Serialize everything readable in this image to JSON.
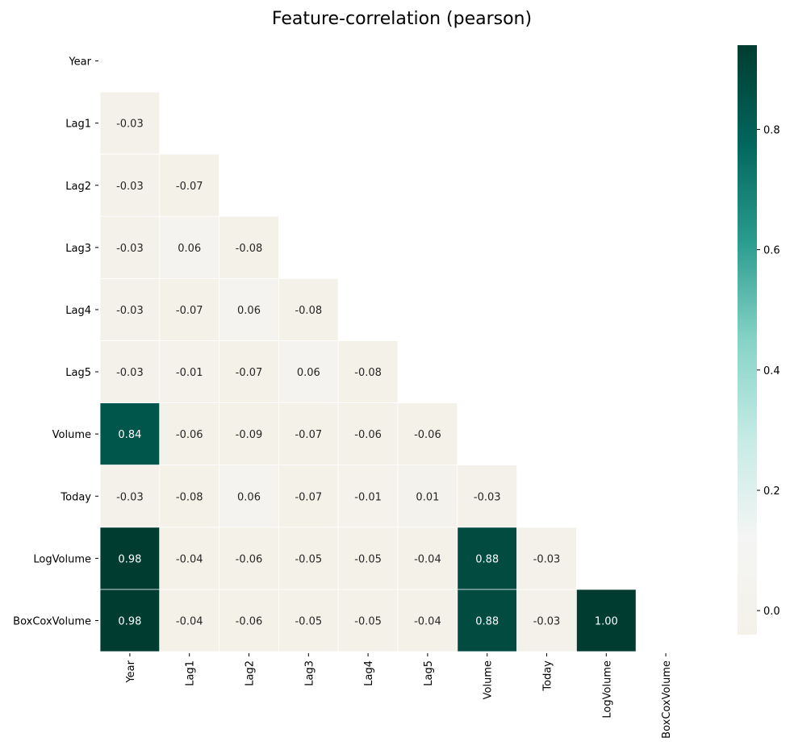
{
  "chart_data": {
    "type": "heatmap",
    "title": "Feature-correlation (pearson)",
    "xlabel": "",
    "ylabel": "",
    "labels": [
      "Year",
      "Lag1",
      "Lag2",
      "Lag3",
      "Lag4",
      "Lag5",
      "Volume",
      "Today",
      "LogVolume",
      "BoxCoxVolume"
    ],
    "mask": "upper-triangle-including-diagonal",
    "value_format": "0.00",
    "matrix": [
      [
        null,
        null,
        null,
        null,
        null,
        null,
        null,
        null,
        null,
        null
      ],
      [
        -0.03,
        null,
        null,
        null,
        null,
        null,
        null,
        null,
        null,
        null
      ],
      [
        -0.03,
        -0.07,
        null,
        null,
        null,
        null,
        null,
        null,
        null,
        null
      ],
      [
        -0.03,
        0.06,
        -0.08,
        null,
        null,
        null,
        null,
        null,
        null,
        null
      ],
      [
        -0.03,
        -0.07,
        0.06,
        -0.08,
        null,
        null,
        null,
        null,
        null,
        null
      ],
      [
        -0.03,
        -0.01,
        -0.07,
        0.06,
        -0.08,
        null,
        null,
        null,
        null,
        null
      ],
      [
        0.84,
        -0.06,
        -0.09,
        -0.07,
        -0.06,
        -0.06,
        null,
        null,
        null,
        null
      ],
      [
        -0.03,
        -0.08,
        0.06,
        -0.07,
        -0.01,
        0.01,
        -0.03,
        null,
        null,
        null
      ],
      [
        0.98,
        -0.04,
        -0.06,
        -0.05,
        -0.05,
        -0.04,
        0.88,
        -0.03,
        null,
        null
      ],
      [
        0.98,
        -0.04,
        -0.06,
        -0.05,
        -0.05,
        -0.04,
        0.88,
        -0.03,
        1.0,
        null
      ]
    ],
    "colorbar": {
      "vmin": -0.04,
      "vmax": 0.94,
      "ticks": [
        "0.0",
        "0.2",
        "0.4",
        "0.6",
        "0.8"
      ],
      "tick_values": [
        0.0,
        0.2,
        0.4,
        0.6,
        0.8
      ],
      "colormap_stops": [
        "#f4f1e9",
        "#f4f5f4",
        "#c5ebe5",
        "#86d3c7",
        "#2a9c8e",
        "#02665d",
        "#003c30"
      ]
    },
    "grid": false,
    "legend": "colorbar-right"
  }
}
